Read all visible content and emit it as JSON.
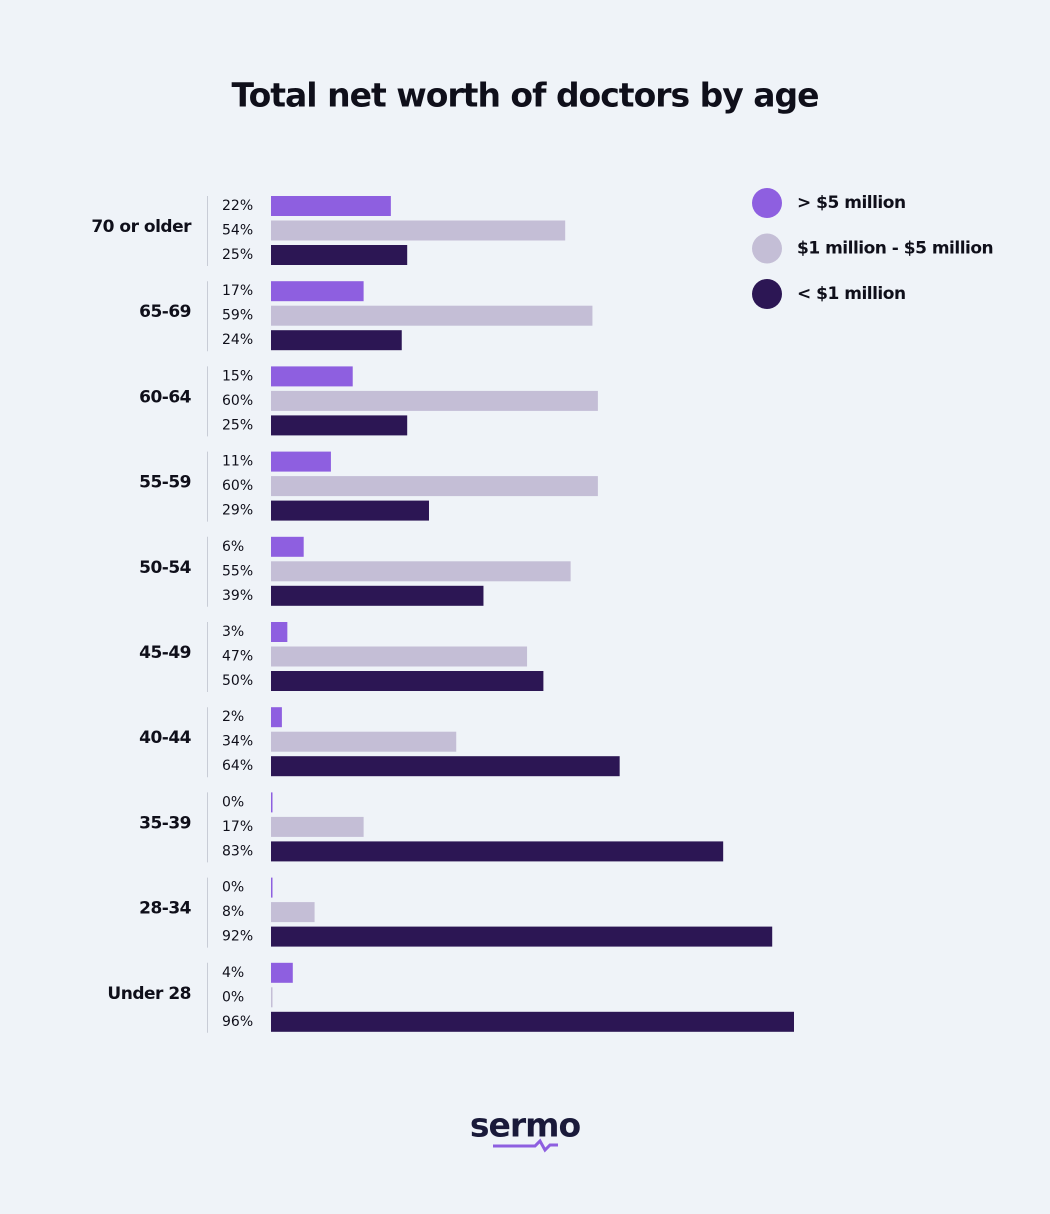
{
  "chart_data": {
    "type": "grouped-hbar",
    "title": "Total net worth of doctors by age",
    "categories": [
      "70 or older",
      "65-69",
      "60-64",
      "55-59",
      "50-54",
      "45-49",
      "40-44",
      "35-39",
      "28-34",
      "Under 28"
    ],
    "series": [
      {
        "name": "> $5 million",
        "color": "#8e5fe0",
        "values": [
          22,
          17,
          15,
          11,
          6,
          3,
          2,
          0,
          0,
          4
        ],
        "value_labels": [
          "22%",
          "17%",
          "15%",
          "11%",
          "6%",
          "3%",
          "2%",
          "0%",
          "0%",
          "4%"
        ]
      },
      {
        "name": "$1 million - $5 million",
        "color": "#c4bed6",
        "values": [
          54,
          59,
          60,
          60,
          55,
          47,
          34,
          17,
          8,
          0
        ],
        "value_labels": [
          "54%",
          "59%",
          "60%",
          "60%",
          "55%",
          "47%",
          "34%",
          "17%",
          "8%",
          "0%"
        ]
      },
      {
        "name": "< $1 million",
        "color": "#2c1654",
        "values": [
          25,
          24,
          25,
          29,
          39,
          50,
          64,
          83,
          92,
          96
        ],
        "value_labels": [
          "25%",
          "24%",
          "25%",
          "29%",
          "39%",
          "50%",
          "64%",
          "83%",
          "92%",
          "96%"
        ]
      }
    ],
    "legend": "top-right"
  },
  "logo": "sermo"
}
